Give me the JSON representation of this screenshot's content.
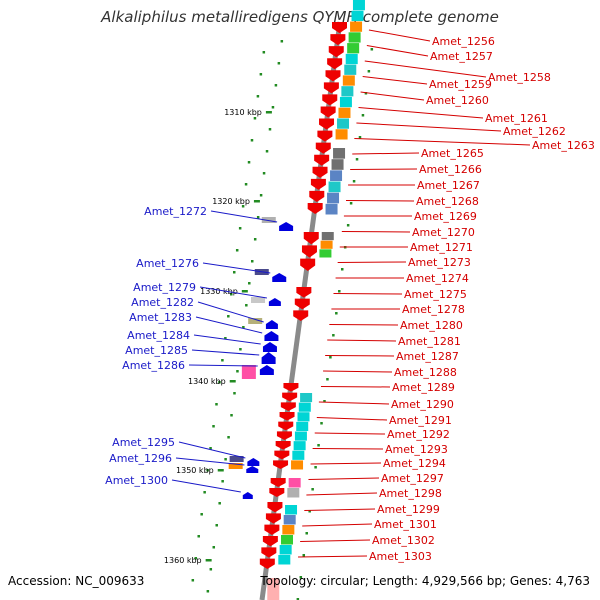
{
  "title": "Alkaliphilus metalliredigens QYMF, complete genome",
  "accession": "Accession: NC_009633",
  "topology": "Topology: circular; Length: 4,929,566 bp; Genes: 4,763",
  "colors": {
    "forward_label": "#d40000",
    "reverse_label": "#1a1ac8",
    "forward_arrow": "#ee0000",
    "reverse_arrow": "#0000dd",
    "backbone": "#8a8a8a",
    "tick": "#228b22"
  },
  "kbp_ticks": [
    "1310 kbp",
    "1320 kbp",
    "1330 kbp",
    "1340 kbp",
    "1350 kbp",
    "1360 kbp"
  ],
  "forward_genes": [
    "Amet_1256",
    "Amet_1257",
    "Amet_1258",
    "Amet_1259",
    "Amet_1260",
    "Amet_1261",
    "Amet_1262",
    "Amet_1263",
    "Amet_1265",
    "Amet_1266",
    "Amet_1267",
    "Amet_1268",
    "Amet_1269",
    "Amet_1270",
    "Amet_1271",
    "Amet_1273",
    "Amet_1274",
    "Amet_1275",
    "Amet_1278",
    "Amet_1280",
    "Amet_1281",
    "Amet_1287",
    "Amet_1288",
    "Amet_1289",
    "Amet_1290",
    "Amet_1291",
    "Amet_1292",
    "Amet_1293",
    "Amet_1294",
    "Amet_1297",
    "Amet_1298",
    "Amet_1299",
    "Amet_1301",
    "Amet_1302",
    "Amet_1303"
  ],
  "reverse_genes": [
    "Amet_1272",
    "Amet_1276",
    "Amet_1279",
    "Amet_1282",
    "Amet_1283",
    "Amet_1284",
    "Amet_1285",
    "Amet_1286",
    "Amet_1295",
    "Amet_1296",
    "Amet_1300"
  ]
}
